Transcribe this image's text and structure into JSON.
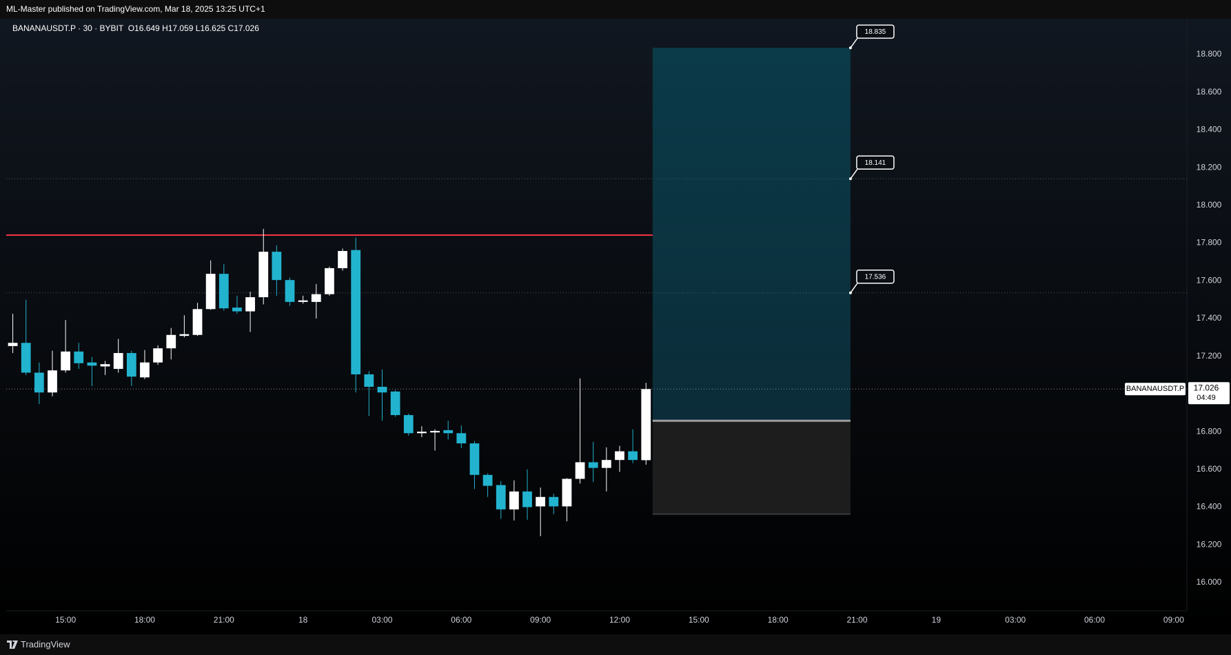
{
  "header": "ML-Master published on TradingView.com, Mar 18, 2025 13:25 UTC+1",
  "footer": {
    "brand": "TradingView"
  },
  "chart_data": {
    "type": "candlestick",
    "symbol": "BANANAUSDT.P",
    "interval": "30",
    "exchange": "BYBIT",
    "separator": "·",
    "ohlc_labels": [
      "O",
      "H",
      "L",
      "C"
    ],
    "countdown": "04:49",
    "up_color": "#ffffff",
    "down_color": "#22b3cf",
    "open": [
      17.254,
      17.271,
      17.113,
      17.008,
      17.125,
      17.225,
      17.167,
      17.146,
      17.133,
      17.217,
      17.088,
      17.167,
      17.242,
      17.308,
      17.313,
      17.45,
      17.637,
      17.458,
      17.438,
      17.513,
      17.754,
      17.604,
      17.488,
      17.488,
      17.529,
      17.667,
      17.763,
      17.104,
      17.038,
      17.013,
      16.888,
      16.792,
      16.796,
      16.808,
      16.792,
      16.738,
      16.571,
      16.517,
      16.388,
      16.483,
      16.404,
      16.454,
      16.404,
      16.55,
      16.638,
      16.608,
      16.65,
      16.696,
      16.649
    ],
    "high": [
      17.425,
      17.5,
      17.167,
      17.229,
      17.392,
      17.271,
      17.196,
      17.175,
      17.292,
      17.229,
      17.233,
      17.258,
      17.35,
      17.417,
      17.483,
      17.708,
      17.688,
      17.521,
      17.542,
      17.875,
      17.788,
      17.617,
      17.521,
      17.583,
      17.675,
      17.771,
      17.829,
      17.121,
      17.129,
      17.021,
      16.896,
      16.829,
      16.813,
      16.858,
      16.833,
      16.75,
      16.579,
      16.538,
      16.542,
      16.6,
      16.504,
      16.471,
      16.554,
      17.083,
      16.746,
      16.717,
      16.725,
      16.813,
      17.059
    ],
    "low": [
      17.217,
      17.1,
      16.946,
      16.988,
      17.113,
      17.133,
      17.042,
      17.1,
      17.113,
      17.042,
      17.079,
      17.154,
      17.183,
      17.3,
      17.308,
      17.446,
      17.442,
      17.425,
      17.329,
      17.475,
      17.521,
      17.467,
      17.479,
      17.4,
      17.521,
      17.654,
      17.008,
      16.883,
      16.858,
      16.879,
      16.779,
      16.771,
      16.7,
      16.758,
      16.713,
      16.496,
      16.454,
      16.338,
      16.329,
      16.333,
      16.246,
      16.363,
      16.325,
      16.525,
      16.533,
      16.483,
      16.587,
      16.633,
      16.625
    ],
    "close": [
      17.271,
      17.113,
      17.008,
      17.125,
      17.225,
      17.163,
      17.15,
      17.158,
      17.217,
      17.092,
      17.167,
      17.242,
      17.313,
      17.317,
      17.45,
      17.637,
      17.454,
      17.438,
      17.513,
      17.754,
      17.604,
      17.488,
      17.496,
      17.529,
      17.667,
      17.758,
      17.104,
      17.038,
      17.008,
      16.888,
      16.792,
      16.8,
      16.804,
      16.792,
      16.738,
      16.571,
      16.513,
      16.388,
      16.483,
      16.4,
      16.454,
      16.404,
      16.55,
      16.638,
      16.608,
      16.65,
      16.696,
      16.65,
      17.026
    ],
    "xlim": [
      -0.5,
      89
    ],
    "xticks": [
      {
        "value": 4,
        "label": "15:00"
      },
      {
        "value": 10,
        "label": "18:00"
      },
      {
        "value": 16,
        "label": "21:00"
      },
      {
        "value": 22,
        "label": "18"
      },
      {
        "value": 28,
        "label": "03:00"
      },
      {
        "value": 34,
        "label": "06:00"
      },
      {
        "value": 40,
        "label": "09:00"
      },
      {
        "value": 46,
        "label": "12:00"
      },
      {
        "value": 52,
        "label": "15:00"
      },
      {
        "value": 58,
        "label": "18:00"
      },
      {
        "value": 64,
        "label": "21:00"
      },
      {
        "value": 70,
        "label": "19"
      },
      {
        "value": 76,
        "label": "03:00"
      },
      {
        "value": 82,
        "label": "06:00"
      },
      {
        "value": 88,
        "label": "09:00"
      }
    ],
    "ylim": [
      15.85,
      18.99
    ],
    "yticks": [
      {
        "value": 16.0,
        "label": "16.000"
      },
      {
        "value": 16.2,
        "label": "16.200"
      },
      {
        "value": 16.4,
        "label": "16.400"
      },
      {
        "value": 16.6,
        "label": "16.600"
      },
      {
        "value": 16.8,
        "label": "16.800"
      },
      {
        "value": 17.2,
        "label": "17.200"
      },
      {
        "value": 17.4,
        "label": "17.400"
      },
      {
        "value": 17.6,
        "label": "17.600"
      },
      {
        "value": 17.8,
        "label": "17.800"
      },
      {
        "value": 18.0,
        "label": "18.000"
      },
      {
        "value": 18.2,
        "label": "18.200"
      },
      {
        "value": 18.4,
        "label": "18.400"
      },
      {
        "value": 18.6,
        "label": "18.600"
      },
      {
        "value": 18.8,
        "label": "18.800"
      }
    ],
    "grid": false,
    "resistance": {
      "value": 17.842,
      "color": "#f23645",
      "end": 48.5
    },
    "position": {
      "start": 49,
      "end": 63,
      "entry": 16.858,
      "stop": 16.363,
      "targets": [
        18.835,
        18.141,
        17.536
      ]
    }
  }
}
